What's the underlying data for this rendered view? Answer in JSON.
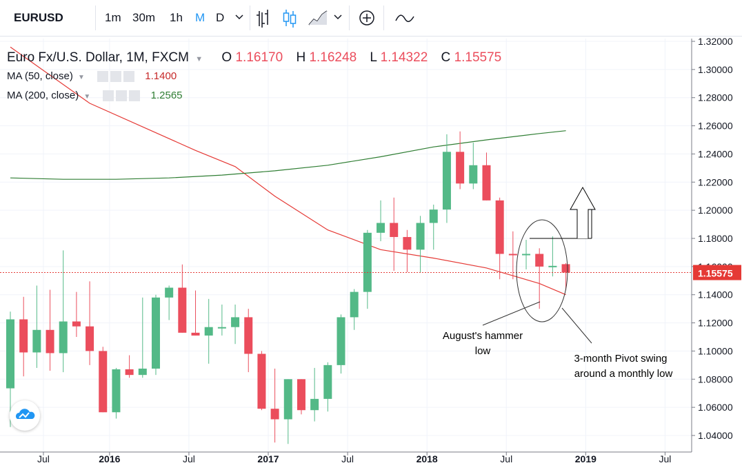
{
  "toolbar": {
    "symbol": "EURUSD",
    "intervals": [
      "1m",
      "30m",
      "1h",
      "M",
      "D"
    ],
    "active_interval": "M"
  },
  "header": {
    "title": "Euro Fx/U.S. Dollar, 1M, FXCM",
    "ohlc": [
      {
        "key": "O",
        "value": "1.16170"
      },
      {
        "key": "H",
        "value": "1.16248"
      },
      {
        "key": "L",
        "value": "1.14322"
      },
      {
        "key": "C",
        "value": "1.15575"
      }
    ],
    "ma50": {
      "label": "MA (50, close)",
      "value": "1.1400",
      "color": "#e53935"
    },
    "ma200": {
      "label": "MA (200, close)",
      "value": "1.2565",
      "color": "#2e7d32"
    }
  },
  "colors": {
    "up": "#53b987",
    "down": "#eb4d5c",
    "price_line": "#e53935"
  },
  "chart_data": {
    "type": "candlestick",
    "title": "Euro Fx/U.S. Dollar, 1M, FXCM",
    "y_axis": {
      "range": [
        1.03,
        1.32
      ],
      "ticks": [
        "1.32000",
        "1.30000",
        "1.28000",
        "1.26000",
        "1.24000",
        "1.22000",
        "1.20000",
        "1.18000",
        "1.16000",
        "1.14000",
        "1.12000",
        "1.10000",
        "1.08000",
        "1.06000",
        "1.04000"
      ]
    },
    "x_axis": {
      "ticks": [
        {
          "label": "Jul",
          "index": 3
        },
        {
          "label": "2016",
          "index": 8
        },
        {
          "label": "Jul",
          "index": 14
        },
        {
          "label": "2017",
          "index": 20
        },
        {
          "label": "Jul",
          "index": 26
        },
        {
          "label": "2018",
          "index": 32
        },
        {
          "label": "Jul",
          "index": 38
        },
        {
          "label": "2019",
          "index": 44
        },
        {
          "label": "Jul",
          "index": 50
        }
      ]
    },
    "candles": [
      {
        "o": 1.0735,
        "h": 1.128,
        "l": 1.046,
        "c": 1.1225
      },
      {
        "o": 1.1225,
        "h": 1.1385,
        "l": 1.082,
        "c": 1.099
      },
      {
        "o": 1.099,
        "h": 1.1465,
        "l": 1.088,
        "c": 1.115
      },
      {
        "o": 1.115,
        "h": 1.1435,
        "l": 1.086,
        "c": 1.0985
      },
      {
        "o": 1.0985,
        "h": 1.1715,
        "l": 1.085,
        "c": 1.121
      },
      {
        "o": 1.121,
        "h": 1.142,
        "l": 1.11,
        "c": 1.1175
      },
      {
        "o": 1.1175,
        "h": 1.1495,
        "l": 1.09,
        "c": 1.1
      },
      {
        "o": 1.1,
        "h": 1.103,
        "l": 1.0565,
        "c": 1.0565
      },
      {
        "o": 1.0565,
        "h": 1.088,
        "l": 1.052,
        "c": 1.087
      },
      {
        "o": 1.087,
        "h": 1.097,
        "l": 1.081,
        "c": 1.083
      },
      {
        "o": 1.083,
        "h": 1.138,
        "l": 1.081,
        "c": 1.0875
      },
      {
        "o": 1.0875,
        "h": 1.14,
        "l": 1.083,
        "c": 1.138
      },
      {
        "o": 1.138,
        "h": 1.1465,
        "l": 1.122,
        "c": 1.145
      },
      {
        "o": 1.145,
        "h": 1.1615,
        "l": 1.113,
        "c": 1.113
      },
      {
        "o": 1.113,
        "h": 1.143,
        "l": 1.111,
        "c": 1.111
      },
      {
        "o": 1.111,
        "h": 1.137,
        "l": 1.091,
        "c": 1.117
      },
      {
        "o": 1.117,
        "h": 1.133,
        "l": 1.111,
        "c": 1.117
      },
      {
        "o": 1.117,
        "h": 1.133,
        "l": 1.105,
        "c": 1.124
      },
      {
        "o": 1.124,
        "h": 1.13,
        "l": 1.085,
        "c": 1.098
      },
      {
        "o": 1.098,
        "h": 1.1,
        "l": 1.058,
        "c": 1.059
      },
      {
        "o": 1.059,
        "h": 1.0875,
        "l": 1.035,
        "c": 1.0515
      },
      {
        "o": 1.0515,
        "h": 1.08,
        "l": 1.034,
        "c": 1.08
      },
      {
        "o": 1.08,
        "h": 1.08,
        "l": 1.055,
        "c": 1.058
      },
      {
        "o": 1.058,
        "h": 1.088,
        "l": 1.05,
        "c": 1.066
      },
      {
        "o": 1.066,
        "h": 1.092,
        "l": 1.057,
        "c": 1.09
      },
      {
        "o": 1.09,
        "h": 1.126,
        "l": 1.084,
        "c": 1.124
      },
      {
        "o": 1.124,
        "h": 1.144,
        "l": 1.115,
        "c": 1.142
      },
      {
        "o": 1.142,
        "h": 1.186,
        "l": 1.13,
        "c": 1.184
      },
      {
        "o": 1.184,
        "h": 1.207,
        "l": 1.178,
        "c": 1.191
      },
      {
        "o": 1.191,
        "h": 1.209,
        "l": 1.157,
        "c": 1.181
      },
      {
        "o": 1.181,
        "h": 1.186,
        "l": 1.156,
        "c": 1.172
      },
      {
        "o": 1.172,
        "h": 1.196,
        "l": 1.156,
        "c": 1.191
      },
      {
        "o": 1.191,
        "h": 1.204,
        "l": 1.172,
        "c": 1.2005
      },
      {
        "o": 1.2005,
        "h": 1.254,
        "l": 1.191,
        "c": 1.2415
      },
      {
        "o": 1.2415,
        "h": 1.256,
        "l": 1.215,
        "c": 1.219
      },
      {
        "o": 1.219,
        "h": 1.248,
        "l": 1.215,
        "c": 1.232
      },
      {
        "o": 1.232,
        "h": 1.241,
        "l": 1.207,
        "c": 1.207
      },
      {
        "o": 1.207,
        "h": 1.209,
        "l": 1.151,
        "c": 1.169
      },
      {
        "o": 1.169,
        "h": 1.185,
        "l": 1.151,
        "c": 1.1685
      },
      {
        "o": 1.1685,
        "h": 1.179,
        "l": 1.158,
        "c": 1.169
      },
      {
        "o": 1.169,
        "h": 1.173,
        "l": 1.13,
        "c": 1.16
      },
      {
        "o": 1.16,
        "h": 1.1815,
        "l": 1.153,
        "c": 1.1605
      },
      {
        "o": 1.1617,
        "h": 1.16248,
        "l": 1.14322,
        "c": 1.15575
      }
    ],
    "series": [
      {
        "name": "MA (50, close)",
        "color": "#e53935",
        "x": [
          0,
          6,
          14,
          17,
          20,
          24,
          28,
          32,
          36,
          40,
          42
        ],
        "y": [
          1.316,
          1.276,
          1.2425,
          1.231,
          1.21,
          1.186,
          1.172,
          1.166,
          1.159,
          1.148,
          1.14
        ]
      },
      {
        "name": "MA (200, close)",
        "color": "#2e7d32",
        "x": [
          0,
          4,
          8,
          12,
          16,
          20,
          24,
          28,
          32,
          36,
          40,
          42
        ],
        "y": [
          1.223,
          1.222,
          1.222,
          1.223,
          1.225,
          1.228,
          1.232,
          1.238,
          1.245,
          1.25,
          1.2545,
          1.2565
        ]
      }
    ],
    "last_price": "1.15575",
    "annotations": [
      {
        "text_lines": [
          "August's hammer",
          "low"
        ]
      },
      {
        "text_lines": [
          "3-month Pivot swing",
          "around a monthly low"
        ]
      }
    ]
  }
}
